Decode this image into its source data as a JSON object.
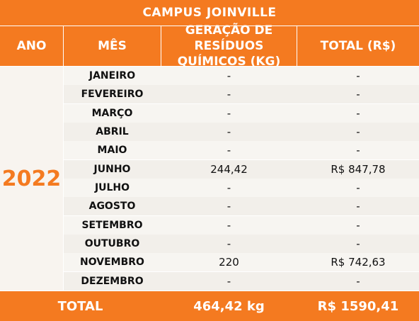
{
  "title": "CAMPUS JOINVILLE",
  "headers": {
    "ano": "ANO",
    "mes": "MÊS",
    "geracao_line1": "GERAÇÃO DE",
    "geracao_line2": "RESÍDUOS QUÍMICOS (KG)",
    "total": "TOTAL (R$)"
  },
  "year": "2022",
  "rows": [
    {
      "mes": "JANEIRO",
      "geracao": "-",
      "total": "-"
    },
    {
      "mes": "FEVEREIRO",
      "geracao": "-",
      "total": "-"
    },
    {
      "mes": "MARÇO",
      "geracao": "-",
      "total": "-"
    },
    {
      "mes": "ABRIL",
      "geracao": "-",
      "total": "-"
    },
    {
      "mes": "MAIO",
      "geracao": "-",
      "total": "-"
    },
    {
      "mes": "JUNHO",
      "geracao": "244,42",
      "total": "R$  847,78"
    },
    {
      "mes": "JULHO",
      "geracao": "-",
      "total": "-"
    },
    {
      "mes": "AGOSTO",
      "geracao": "-",
      "total": "-"
    },
    {
      "mes": "SETEMBRO",
      "geracao": "-",
      "total": "-"
    },
    {
      "mes": "OUTUBRO",
      "geracao": "-",
      "total": "-"
    },
    {
      "mes": "NOVEMBRO",
      "geracao": "220",
      "total": "R$  742,63"
    },
    {
      "mes": "DEZEMBRO",
      "geracao": "-",
      "total": "-"
    }
  ],
  "footer": {
    "label": "TOTAL",
    "geracao": "464,42 kg",
    "total": "R$ 1590,41"
  },
  "colors": {
    "accent": "#f47a20",
    "body_bg": "#f7f5f1",
    "text": "#111111"
  }
}
